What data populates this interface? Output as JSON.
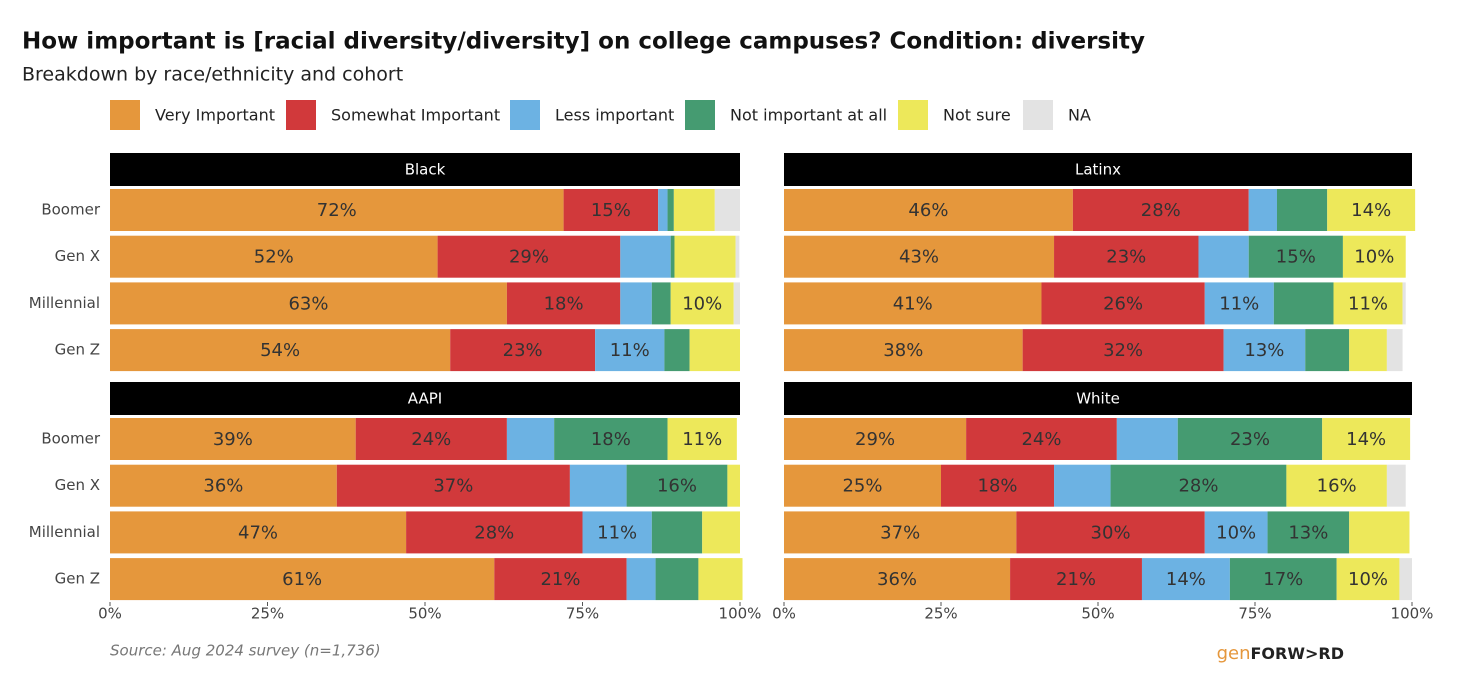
{
  "chart_data": {
    "type": "bar",
    "orientation": "horizontal",
    "stacked": true,
    "title": "How important is [racial diversity/diversity] on college campuses? Condition: diversity",
    "subtitle": "Breakdown by race/ethnicity and cohort",
    "source": "Source: Aug 2024 survey (n=1,736)",
    "logo": {
      "prefix": "gen",
      "name": "FORW>RD"
    },
    "categories": [
      "Boomer",
      "Gen X",
      "Millennial",
      "Gen Z"
    ],
    "series": [
      {
        "name": "Very Important",
        "color": "#e5973c"
      },
      {
        "name": "Somewhat Important",
        "color": "#d1393b"
      },
      {
        "name": "Less important",
        "color": "#6cb2e3"
      },
      {
        "name": "Not important at all",
        "color": "#459b71"
      },
      {
        "name": "Not sure",
        "color": "#ede85a"
      },
      {
        "name": "NA",
        "color": "#e3e3e3"
      }
    ],
    "xlim": [
      0,
      100
    ],
    "xticks": [
      {
        "value": 0,
        "label": "0%"
      },
      {
        "value": 25,
        "label": "25%"
      },
      {
        "value": 50,
        "label": "50%"
      },
      {
        "value": 75,
        "label": "75%"
      },
      {
        "value": 100,
        "label": "100%"
      }
    ],
    "panels": [
      {
        "title": "Black",
        "series": [
          {
            "values": [
              72,
              52,
              63,
              54
            ],
            "value_labels": [
              "72%",
              "52%",
              "63%",
              "54%"
            ]
          },
          {
            "values": [
              15,
              29,
              18,
              23
            ],
            "value_labels": [
              "15%",
              "29%",
              "18%",
              "23%"
            ]
          },
          {
            "values": [
              1.5,
              8,
              5,
              11
            ],
            "value_labels": [
              null,
              null,
              null,
              "11%"
            ]
          },
          {
            "values": [
              1,
              0.6,
              3,
              4
            ],
            "value_labels": [
              null,
              null,
              null,
              null
            ]
          },
          {
            "values": [
              6.5,
              9.7,
              10,
              8
            ],
            "value_labels": [
              null,
              null,
              "10%",
              null
            ]
          },
          {
            "values": [
              4,
              0.6,
              1,
              0
            ],
            "value_labels": [
              null,
              null,
              null,
              null
            ]
          }
        ]
      },
      {
        "title": "Latinx",
        "series": [
          {
            "values": [
              46,
              43,
              41,
              38
            ],
            "value_labels": [
              "46%",
              "43%",
              "41%",
              "38%"
            ]
          },
          {
            "values": [
              28,
              23,
              26,
              32
            ],
            "value_labels": [
              "28%",
              "23%",
              "26%",
              "32%"
            ]
          },
          {
            "values": [
              4.5,
              8,
              11,
              13
            ],
            "value_labels": [
              null,
              null,
              "11%",
              "13%"
            ]
          },
          {
            "values": [
              8,
              15,
              9.5,
              7
            ],
            "value_labels": [
              null,
              "15%",
              null,
              null
            ]
          },
          {
            "values": [
              14,
              10,
              11,
              6
            ],
            "value_labels": [
              "14%",
              "10%",
              "11%",
              null
            ]
          },
          {
            "values": [
              0,
              0,
              0.5,
              2.5
            ],
            "value_labels": [
              null,
              null,
              null,
              null
            ]
          }
        ]
      },
      {
        "title": "AAPI",
        "series": [
          {
            "values": [
              39,
              36,
              47,
              61
            ],
            "value_labels": [
              "39%",
              "36%",
              "47%",
              "61%"
            ]
          },
          {
            "values": [
              24,
              37,
              28,
              21
            ],
            "value_labels": [
              "24%",
              "37%",
              "28%",
              "21%"
            ]
          },
          {
            "values": [
              7.5,
              9,
              11,
              4.6
            ],
            "value_labels": [
              null,
              null,
              "11%",
              null
            ]
          },
          {
            "values": [
              18,
              16,
              8,
              6.8
            ],
            "value_labels": [
              "18%",
              "16%",
              null,
              null
            ]
          },
          {
            "values": [
              11,
              2,
              6,
              7
            ],
            "value_labels": [
              "11%",
              null,
              null,
              null
            ]
          },
          {
            "values": [
              0,
              0,
              0,
              0
            ],
            "value_labels": [
              null,
              null,
              null,
              null
            ]
          }
        ]
      },
      {
        "title": "White",
        "series": [
          {
            "values": [
              29,
              25,
              37,
              36
            ],
            "value_labels": [
              "29%",
              "25%",
              "37%",
              "36%"
            ]
          },
          {
            "values": [
              24,
              18,
              30,
              21
            ],
            "value_labels": [
              "24%",
              "18%",
              "30%",
              "21%"
            ]
          },
          {
            "values": [
              9.7,
              9,
              10,
              14
            ],
            "value_labels": [
              null,
              null,
              "10%",
              "14%"
            ]
          },
          {
            "values": [
              23,
              28,
              13,
              17
            ],
            "value_labels": [
              "23%",
              "28%",
              "13%",
              "17%"
            ]
          },
          {
            "values": [
              14,
              16,
              9.6,
              10
            ],
            "value_labels": [
              "14%",
              "16%",
              null,
              "10%"
            ]
          },
          {
            "values": [
              0,
              3,
              0,
              2
            ],
            "value_labels": [
              null,
              null,
              null,
              null
            ]
          }
        ]
      }
    ]
  }
}
